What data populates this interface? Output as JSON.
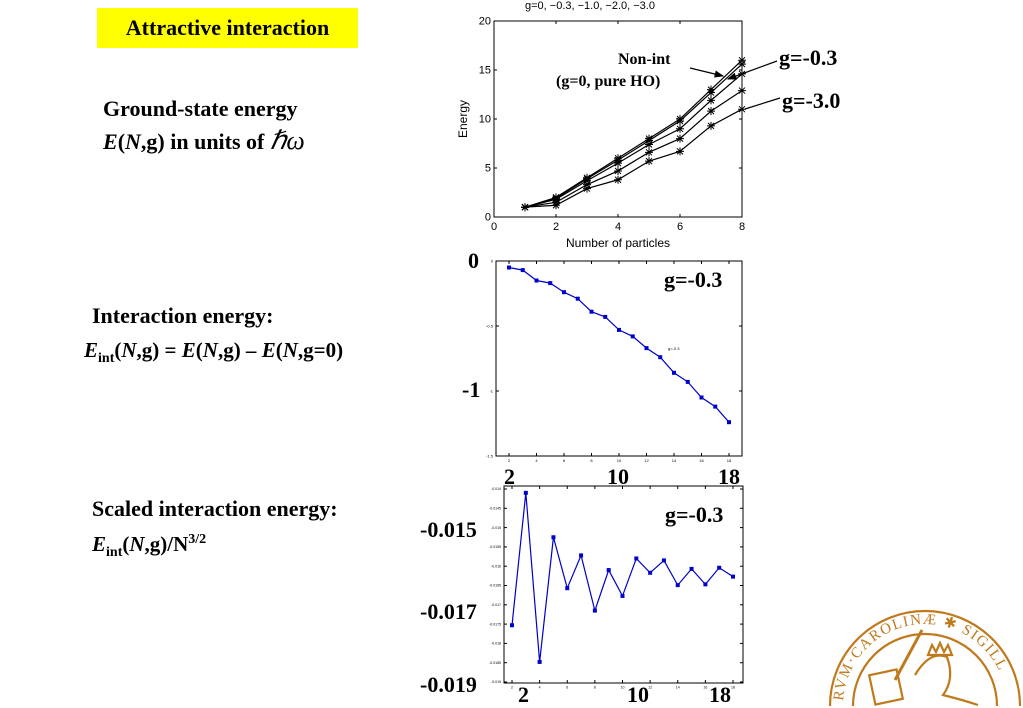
{
  "slide": {
    "banner": "Attractive interaction",
    "section1": {
      "line1": "Ground-state energy",
      "line2_E": "E",
      "line2_open": "(",
      "line2_N": "N",
      "line2_rest": ",g) in units of ",
      "line2_hw": "ℏω"
    },
    "section2": {
      "line1": "Interaction energy:",
      "E": "E",
      "sub": "int",
      "p1": "(",
      "N": "N",
      "p2": ",g) = ",
      "E2": "E",
      "p3": "(",
      "N2": "N",
      "p4": ",g) – ",
      "E3": "E",
      "p5": "(",
      "N3": "N",
      "p6": ",g=0)"
    },
    "section3": {
      "line1": "Scaled interaction energy:",
      "E": "E",
      "sub": "int",
      "p1": "(",
      "N": "N",
      "p2": ",g)/N",
      "sup": "3/2"
    },
    "seal_text": "SIGILLUM UNIVERSITATIS CAROLINAE · AD UTRUMQUE",
    "seal_color": "#c07a1c"
  },
  "chart_data": [
    {
      "type": "line",
      "title": "g=0, −0.3, −1.0, −2.0, −3.0",
      "xlabel": "Number of particles",
      "ylabel": "Energy",
      "xlim": [
        0,
        8
      ],
      "ylim": [
        0,
        20
      ],
      "xticks": [
        0,
        2,
        4,
        6,
        8
      ],
      "yticks": [
        0,
        5,
        10,
        15,
        20
      ],
      "grid": false,
      "marker": "asterisk",
      "color": "#000000",
      "x": [
        1,
        2,
        3,
        4,
        5,
        6,
        7,
        8
      ],
      "series": [
        {
          "values": [
            1,
            2.0,
            4.0,
            6.0,
            8.0,
            10.0,
            13.0,
            16.0
          ]
        },
        {
          "values": [
            1,
            1.9,
            3.9,
            5.8,
            7.8,
            9.8,
            12.7,
            15.6
          ]
        },
        {
          "values": [
            1,
            1.8,
            3.7,
            5.5,
            7.4,
            9.0,
            11.9,
            14.6
          ]
        },
        {
          "values": [
            1,
            1.5,
            3.3,
            4.7,
            6.6,
            8.0,
            10.8,
            12.9
          ]
        },
        {
          "values": [
            1,
            1.2,
            2.9,
            3.8,
            5.7,
            6.7,
            9.3,
            11.0
          ]
        }
      ],
      "annotations": {
        "nonint1": "Non-int",
        "nonint2": "(g=0, pure HO)",
        "g03": "g=-0.3",
        "g30": "g=-3.0"
      }
    },
    {
      "type": "line",
      "xlim": [
        1,
        19
      ],
      "ylim": [
        -1.5,
        0
      ],
      "xticks": [
        2,
        4,
        6,
        8,
        10,
        12,
        14,
        16,
        18
      ],
      "yticks": [
        0,
        -0.5,
        -1,
        -1.5
      ],
      "big_yticks": [
        "0",
        "-1"
      ],
      "big_xticks": [
        "2",
        "10",
        "18"
      ],
      "color": "#0000cc",
      "x": [
        2,
        3,
        4,
        5,
        6,
        7,
        8,
        9,
        10,
        11,
        12,
        13,
        14,
        15,
        16,
        17,
        18
      ],
      "values": [
        -0.05,
        -0.07,
        -0.15,
        -0.17,
        -0.24,
        -0.29,
        -0.39,
        -0.43,
        -0.53,
        -0.58,
        -0.67,
        -0.74,
        -0.86,
        -0.93,
        -1.05,
        -1.12,
        -1.24
      ],
      "label": "g=-0.3",
      "small_label": "g=-0.3"
    },
    {
      "type": "line",
      "xlim": [
        1,
        19
      ],
      "ylim": [
        -0.019,
        -0.014
      ],
      "xticks": [
        2,
        4,
        6,
        8,
        10,
        12,
        14,
        16,
        18
      ],
      "yticks": [
        -0.014,
        -0.0145,
        -0.015,
        -0.0155,
        -0.016,
        -0.0165,
        -0.017,
        -0.0175,
        -0.018,
        -0.0185,
        -0.019
      ],
      "big_yticks": [
        "-0.015",
        "-0.017",
        "-0.019"
      ],
      "big_xticks": [
        "2",
        "10",
        "18"
      ],
      "color": "#0000cc",
      "x": [
        2,
        3,
        4,
        5,
        6,
        7,
        8,
        9,
        10,
        11,
        12,
        13,
        14,
        15,
        16,
        17,
        18
      ],
      "values": [
        -0.01753,
        -0.0141,
        -0.01848,
        -0.01525,
        -0.01657,
        -0.01572,
        -0.01715,
        -0.0161,
        -0.01677,
        -0.0158,
        -0.01617,
        -0.01585,
        -0.01649,
        -0.01607,
        -0.01647,
        -0.01604,
        -0.01627
      ],
      "label": "g=-0.3"
    }
  ]
}
